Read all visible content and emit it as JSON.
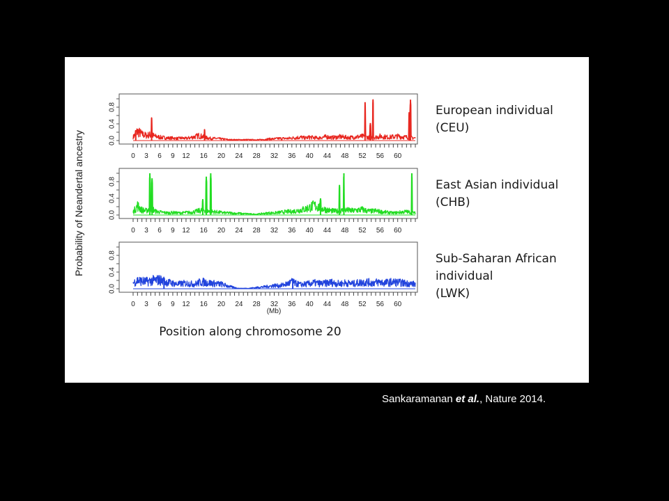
{
  "citation": {
    "authors": "Sankaramanan",
    "etal": "et al.",
    "rest": ", Nature 2014."
  },
  "chart_data": {
    "type": "line",
    "ylabel": "Probability of Neandertal ancestry",
    "xlabel": "Position along chromosome 20",
    "xunit": "(Mb)",
    "xlim": [
      0,
      64
    ],
    "ylim": [
      0,
      1
    ],
    "x_ticks": [
      0,
      3,
      6,
      9,
      12,
      16,
      20,
      24,
      28,
      32,
      36,
      40,
      44,
      48,
      52,
      56,
      60
    ],
    "y_ticks": [
      "0.0",
      "0.4",
      "0.8"
    ],
    "colors": {
      "CEU": "#e8261f",
      "CHB": "#22dd22",
      "LWK": "#2244dd"
    },
    "series": [
      {
        "name_line1": "European individual",
        "name_line2": "(CEU)",
        "name_line3": "",
        "key": "CEU",
        "background": [
          0.08,
          0.22,
          0.15,
          0.12,
          0.14,
          0.1,
          0.08,
          0.07,
          0.06,
          0.06,
          0.05,
          0.06,
          0.05,
          0.07,
          0.09,
          0.12,
          0.08,
          0.06,
          0.05,
          0.05,
          0.04,
          0.03,
          0.02,
          0.02,
          0.02,
          0.02,
          0.02,
          0.02,
          0.02,
          0.02,
          0.03,
          0.04,
          0.04,
          0.05,
          0.05,
          0.05,
          0.06,
          0.07,
          0.08,
          0.06,
          0.08,
          0.07,
          0.06,
          0.08,
          0.09,
          0.07,
          0.08,
          0.09,
          0.08,
          0.07,
          0.08,
          0.09,
          0.1,
          0.08,
          0.07,
          0.08,
          0.1,
          0.09,
          0.08,
          0.09,
          0.1,
          0.09,
          0.08,
          0.07,
          0.06
        ],
        "peaks": [
          {
            "x": 0.6,
            "y": 0.25
          },
          {
            "x": 4.2,
            "y": 0.55
          },
          {
            "x": 16.2,
            "y": 0.27
          },
          {
            "x": 52.6,
            "y": 0.92
          },
          {
            "x": 53.8,
            "y": 0.42
          },
          {
            "x": 54.4,
            "y": 0.98
          },
          {
            "x": 62.6,
            "y": 0.68
          },
          {
            "x": 62.9,
            "y": 0.98
          }
        ]
      },
      {
        "name_line1": "East Asian individual",
        "name_line2": "(CHB)",
        "name_line3": "",
        "key": "CHB",
        "background": [
          0.07,
          0.22,
          0.12,
          0.1,
          0.18,
          0.09,
          0.07,
          0.06,
          0.05,
          0.06,
          0.05,
          0.05,
          0.06,
          0.06,
          0.08,
          0.1,
          0.12,
          0.09,
          0.08,
          0.07,
          0.06,
          0.05,
          0.05,
          0.04,
          0.04,
          0.03,
          0.03,
          0.02,
          0.02,
          0.03,
          0.04,
          0.05,
          0.05,
          0.06,
          0.07,
          0.08,
          0.08,
          0.1,
          0.12,
          0.14,
          0.18,
          0.22,
          0.2,
          0.15,
          0.12,
          0.1,
          0.09,
          0.1,
          0.12,
          0.11,
          0.1,
          0.12,
          0.13,
          0.1,
          0.09,
          0.1,
          0.08,
          0.07,
          0.06,
          0.05,
          0.06,
          0.07,
          0.08,
          0.06,
          0.05
        ],
        "peaks": [
          {
            "x": 3.8,
            "y": 1.0
          },
          {
            "x": 4.3,
            "y": 0.88
          },
          {
            "x": 15.8,
            "y": 0.38
          },
          {
            "x": 16.6,
            "y": 0.92
          },
          {
            "x": 17.6,
            "y": 1.0
          },
          {
            "x": 42.5,
            "y": 0.4
          },
          {
            "x": 46.8,
            "y": 0.72
          },
          {
            "x": 47.8,
            "y": 1.0
          },
          {
            "x": 63.2,
            "y": 1.0
          }
        ]
      },
      {
        "name_line1": "Sub-Saharan African",
        "name_line2": "individual",
        "name_line3": "(LWK)",
        "key": "LWK",
        "background": [
          0.14,
          0.2,
          0.18,
          0.17,
          0.19,
          0.2,
          0.21,
          0.18,
          0.15,
          0.13,
          0.11,
          0.12,
          0.13,
          0.12,
          0.11,
          0.15,
          0.16,
          0.14,
          0.13,
          0.12,
          0.11,
          0.08,
          0.05,
          0.03,
          0.01,
          0.01,
          0.01,
          0.02,
          0.03,
          0.04,
          0.05,
          0.06,
          0.08,
          0.07,
          0.09,
          0.12,
          0.16,
          0.12,
          0.1,
          0.11,
          0.12,
          0.14,
          0.13,
          0.12,
          0.14,
          0.15,
          0.13,
          0.12,
          0.14,
          0.13,
          0.12,
          0.14,
          0.15,
          0.16,
          0.14,
          0.15,
          0.16,
          0.14,
          0.15,
          0.16,
          0.15,
          0.14,
          0.13,
          0.12,
          0.11
        ],
        "peaks": [
          {
            "x": 36.2,
            "y": 0.24
          },
          {
            "x": 7.0,
            "y": 0.22
          }
        ]
      }
    ]
  }
}
